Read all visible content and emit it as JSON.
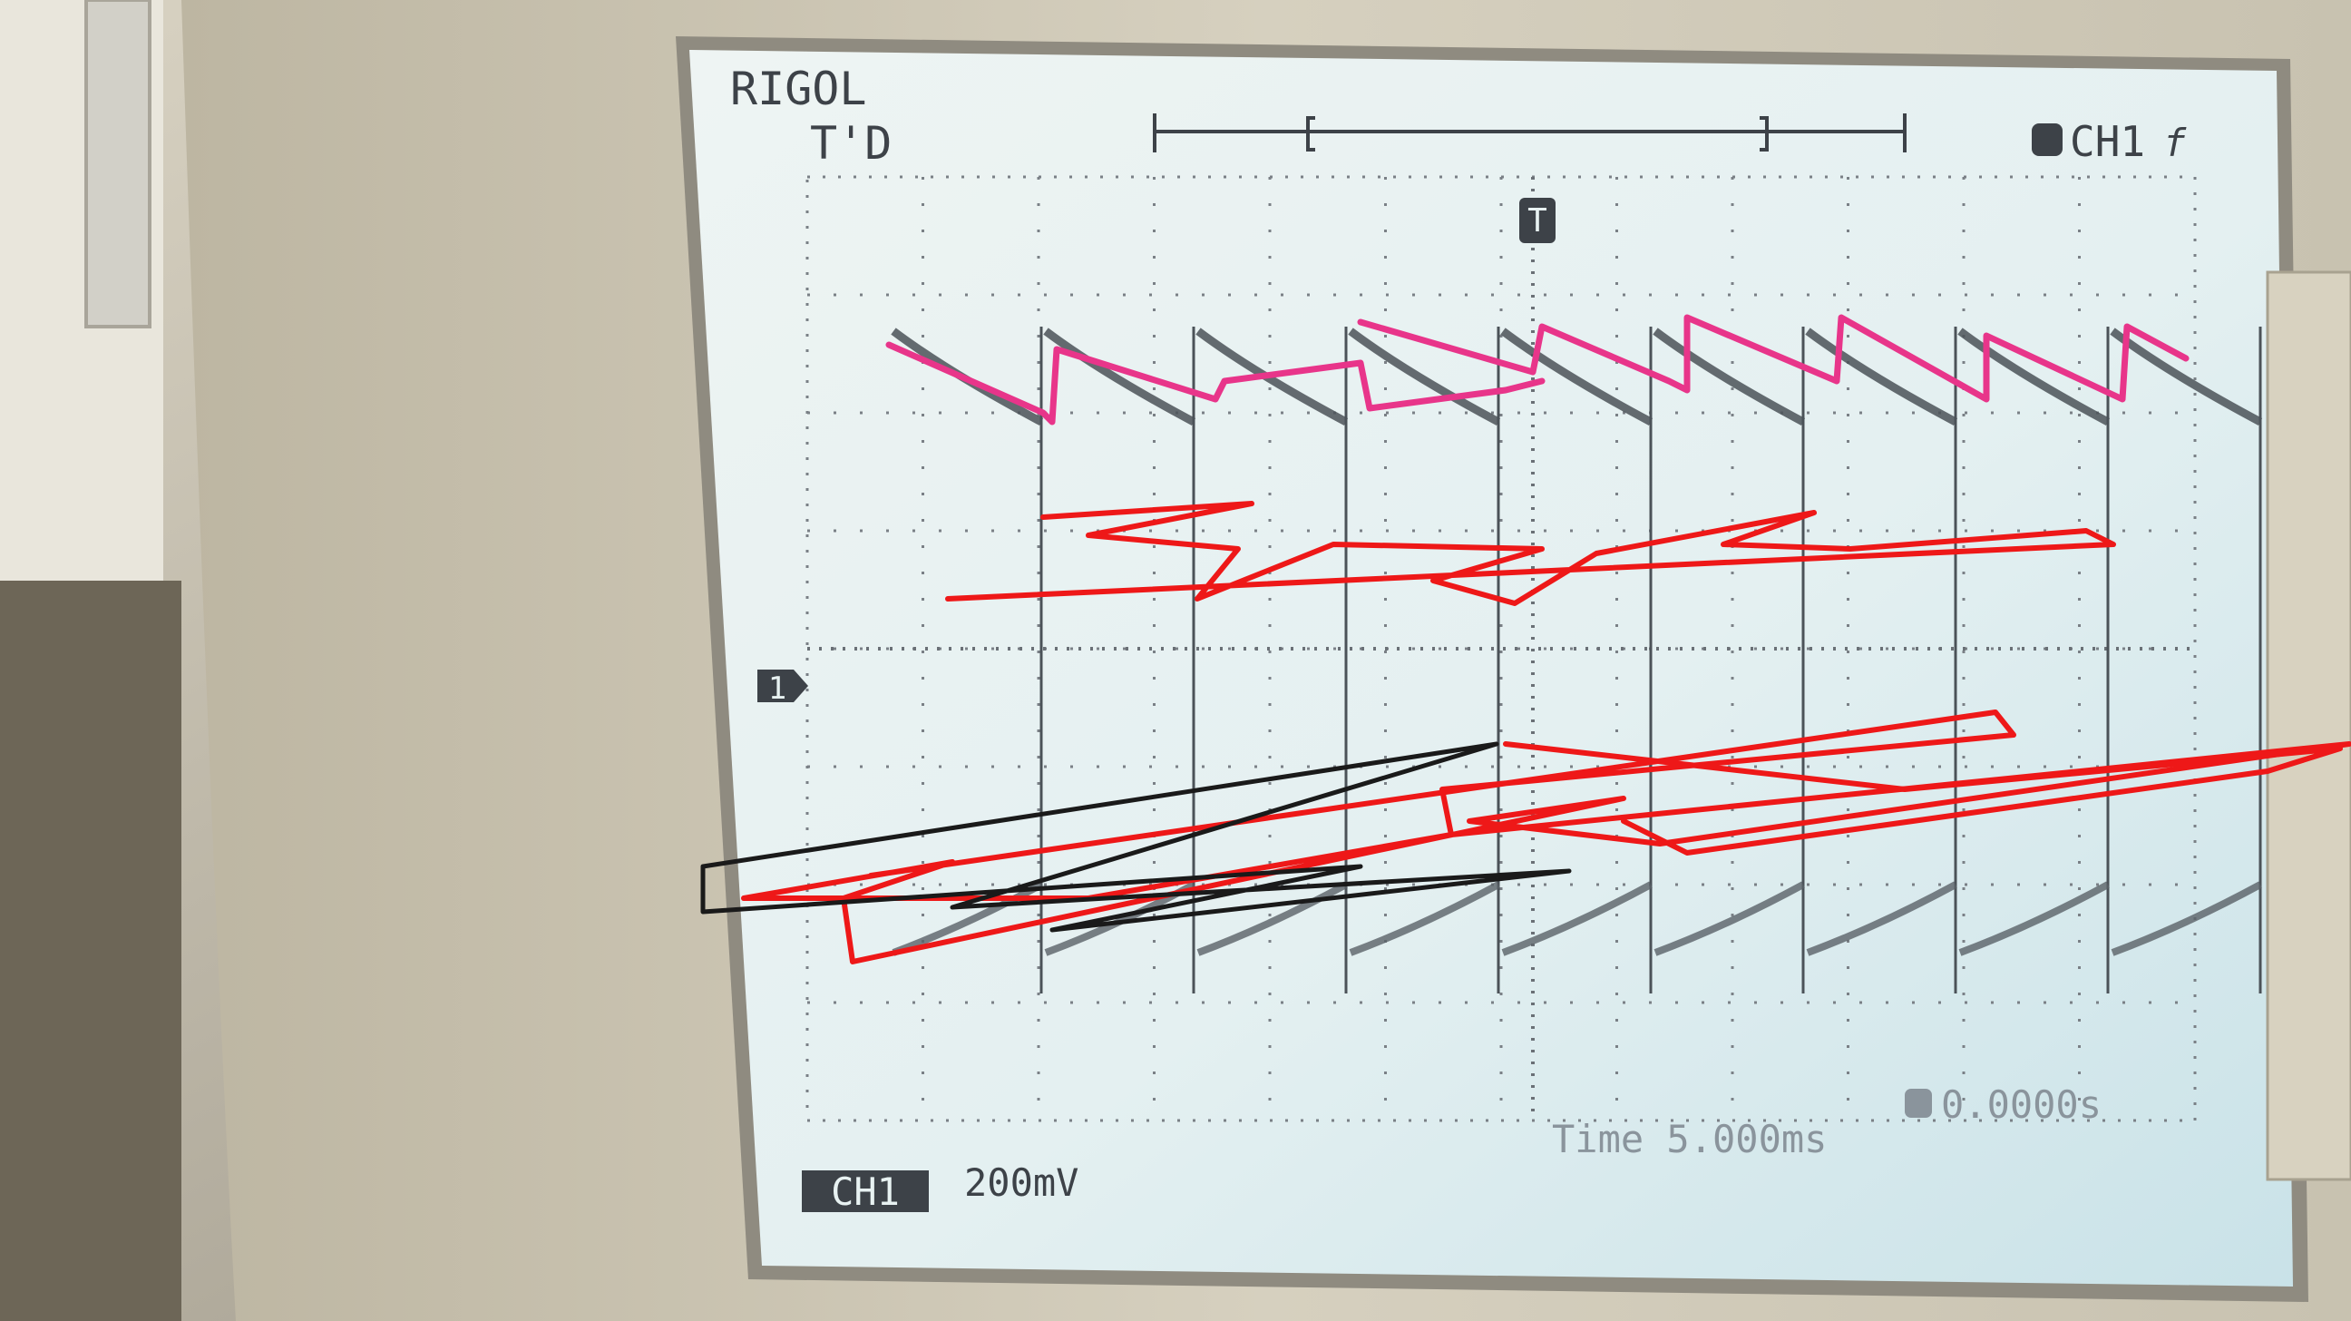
{
  "header": {
    "brand": "RIGOL",
    "mode": "T'D",
    "trigger_source": "CH1"
  },
  "markers": {
    "channel": "1",
    "trigger": "T"
  },
  "footer": {
    "timebase": "Time 5.000ms",
    "trigger_offset": "0.0000s",
    "channel": "CH1",
    "scale": "200mV"
  }
}
